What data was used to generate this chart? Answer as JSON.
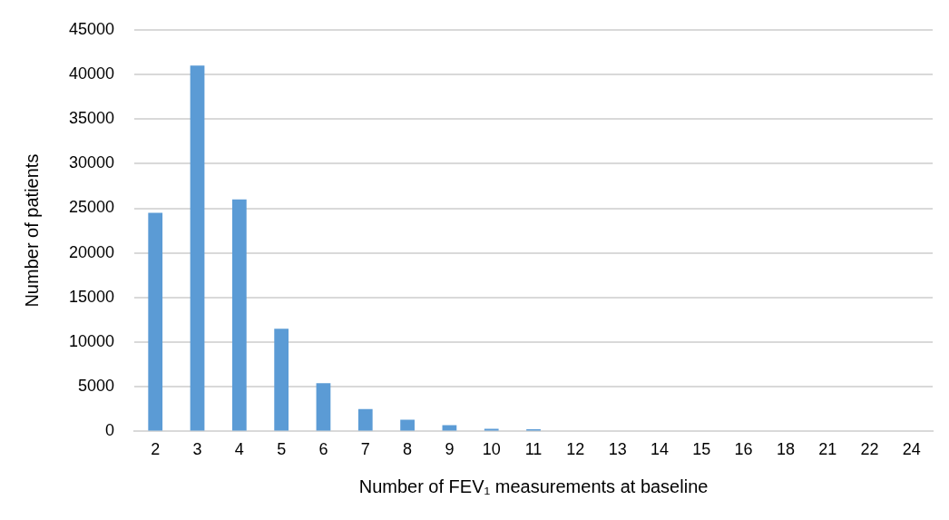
{
  "chart_data": {
    "type": "bar",
    "xlabel": "Number of FEV₁ measurements at baseline",
    "ylabel": "Number of patients",
    "categories": [
      "2",
      "3",
      "4",
      "5",
      "6",
      "7",
      "8",
      "9",
      "10",
      "11",
      "12",
      "13",
      "14",
      "15",
      "16",
      "18",
      "21",
      "22",
      "24"
    ],
    "values": [
      24500,
      41000,
      26000,
      11500,
      5400,
      2500,
      1300,
      700,
      300,
      250,
      100,
      0,
      0,
      0,
      0,
      0,
      0,
      0,
      0
    ],
    "color": "#5b9bd5",
    "ylim": [
      0,
      45000
    ],
    "yticks": [
      0,
      5000,
      10000,
      15000,
      20000,
      25000,
      30000,
      35000,
      40000,
      45000
    ],
    "grid": "y",
    "legend": false
  }
}
